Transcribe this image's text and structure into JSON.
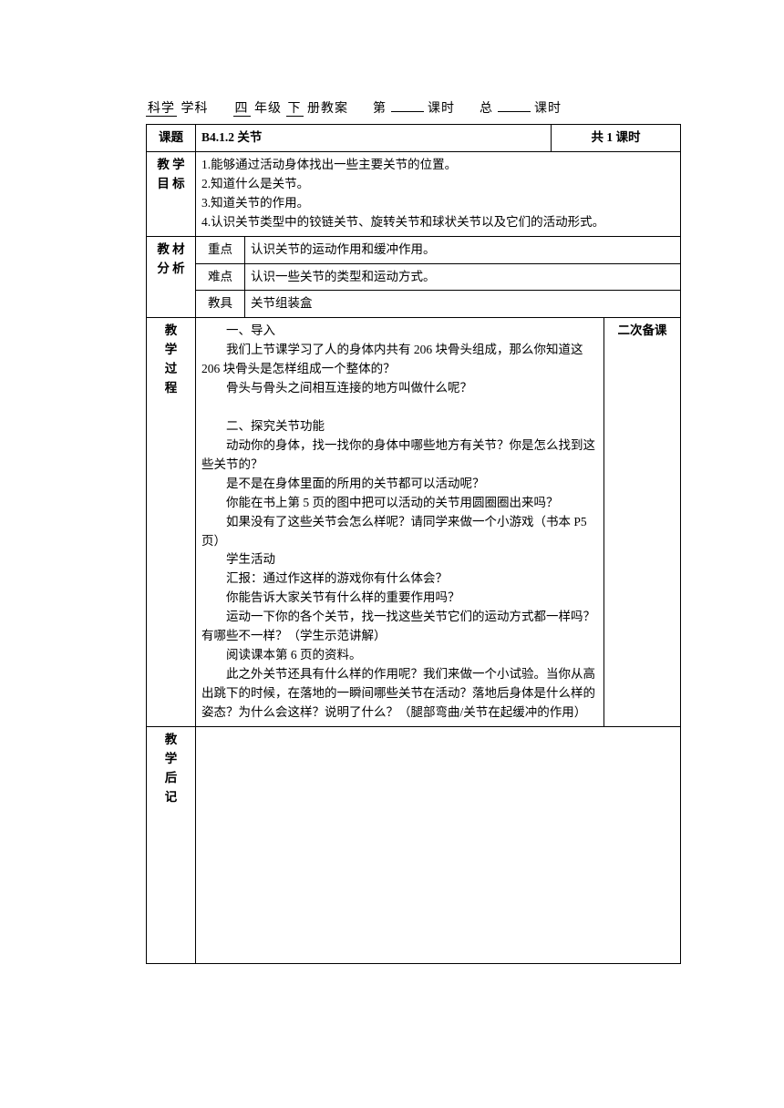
{
  "header": {
    "subject_underlined": "科学",
    "subject_suffix": "学科",
    "grade_underlined": "四",
    "grade_mid": "年级",
    "vol_underlined": "下",
    "vol_suffix": "册教案",
    "period_prefix": "第",
    "period_suffix": "课时",
    "total_prefix": "总",
    "total_suffix": "课时"
  },
  "row_title": {
    "label": "课题",
    "value": "B4.1.2 关节",
    "periods": "共 1 课时"
  },
  "objectives": {
    "label1": "教 学",
    "label2": "目 标",
    "lines": [
      "1.能够通过活动身体找出一些主要关节的位置。",
      "2.知道什么是关节。",
      "3.知道关节的作用。",
      "4.认识关节类型中的铰链关节、旋转关节和球状关节以及它们的活动形式。"
    ]
  },
  "analysis": {
    "label1": "教 材",
    "label2": "分 析",
    "rows": {
      "key_label": "重点",
      "key_value": "认识关节的运动作用和缓冲作用。",
      "diff_label": "难点",
      "diff_value": "认识一些关节的类型和运动方式。",
      "tool_label": "教具",
      "tool_value": "关节组装盒"
    }
  },
  "process": {
    "label_chars": [
      "教",
      "学",
      "过",
      "程"
    ],
    "secondary_label": "二次备课",
    "paragraphs": [
      {
        "t": "一、导入",
        "indent": true
      },
      {
        "t": "我们上节课学习了人的身体内共有 206 块骨头组成，那么你知道这 206 块骨头是怎样组成一个整体的？",
        "indent": true
      },
      {
        "t": "骨头与骨头之间相互连接的地方叫做什么呢？",
        "indent": true
      },
      {
        "t": " ",
        "indent": false
      },
      {
        "t": "二、探究关节功能",
        "indent": true
      },
      {
        "t": "动动你的身体，找一找你的身体中哪些地方有关节？你是怎么找到这些关节的？",
        "indent": true
      },
      {
        "t": "是不是在身体里面的所用的关节都可以活动呢？",
        "indent": true
      },
      {
        "t": "你能在书上第 5 页的图中把可以活动的关节用圆圈圈出来吗？",
        "indent": true
      },
      {
        "t": "如果没有了这些关节会怎么样呢？请同学来做一个小游戏（书本 P5 页）",
        "indent": true
      },
      {
        "t": "学生活动",
        "indent": true
      },
      {
        "t": "汇报：通过作这样的游戏你有什么体会？",
        "indent": true
      },
      {
        "t": "你能告诉大家关节有什么样的重要作用吗？",
        "indent": true
      },
      {
        "t": "运动一下你的各个关节，找一找这些关节它们的运动方式都一样吗？有哪些不一样？（学生示范讲解）",
        "indent": true
      },
      {
        "t": "阅读课本第 6 页的资料。",
        "indent": true
      },
      {
        "t": "此之外关节还具有什么样的作用呢？我们来做一个小试验。当你从高出跳下的时候，在落地的一瞬间哪些关节在活动？落地后身体是什么样的姿态？为什么会这样？说明了什么？（腿部弯曲/关节在起缓冲的作用）",
        "indent": true
      }
    ]
  },
  "notes": {
    "label_chars": [
      "教",
      "学",
      "后",
      "记"
    ]
  },
  "colors": {
    "border": "#000000",
    "text": "#000000",
    "background": "#ffffff"
  }
}
